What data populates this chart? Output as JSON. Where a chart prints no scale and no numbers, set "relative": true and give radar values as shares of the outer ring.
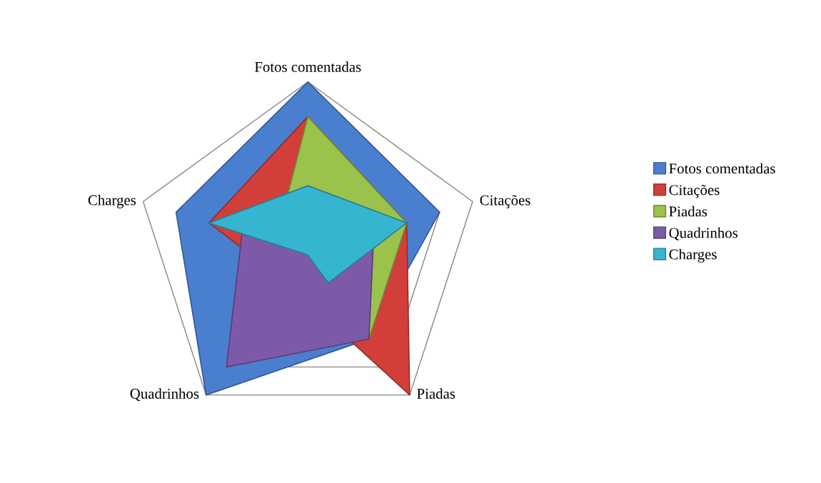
{
  "chart_data": {
    "type": "radar",
    "relative": true,
    "grid": true,
    "legend": "right",
    "categories": [
      "Fotos comentadas",
      "Citações",
      "Piadas",
      "Quadrinhos",
      "Charges"
    ],
    "series": [
      {
        "name": "Fotos comentadas",
        "color": "#4a7fd0",
        "values": [
          1.0,
          0.8,
          0.6,
          1.0,
          0.8
        ]
      },
      {
        "name": "Citações",
        "color": "#d23f3a",
        "values": [
          0.8,
          0.6,
          1.0,
          0.2,
          0.6
        ]
      },
      {
        "name": "Piadas",
        "color": "#9bc24a",
        "values": [
          0.8,
          0.6,
          0.6,
          0.2,
          0.2
        ]
      },
      {
        "name": "Quadrinhos",
        "color": "#7d5aa8",
        "values": [
          0.2,
          0.4,
          0.6,
          0.8,
          0.4
        ]
      },
      {
        "name": "Charges",
        "color": "#36b5d0",
        "values": [
          0.4,
          0.6,
          0.2,
          0.0,
          0.6
        ]
      }
    ]
  }
}
